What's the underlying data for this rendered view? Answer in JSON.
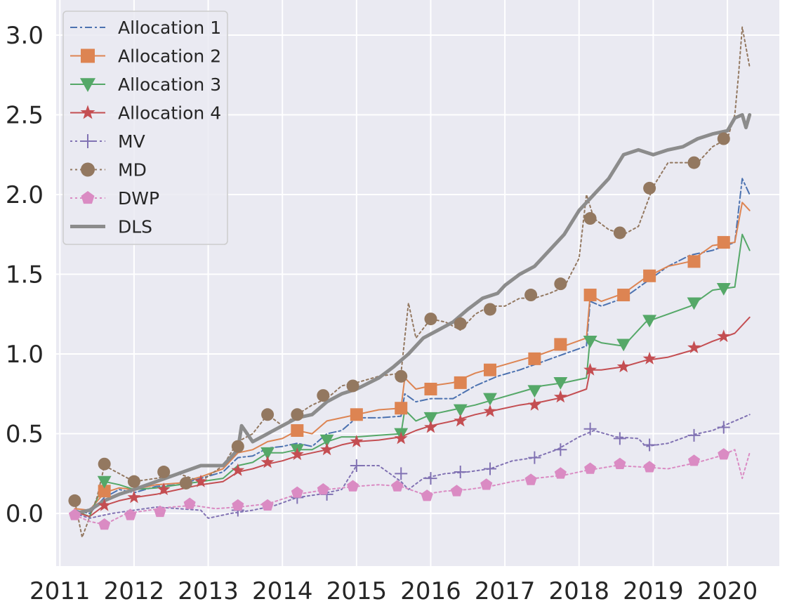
{
  "chart_data": {
    "type": "line",
    "title": "",
    "xlabel": "",
    "ylabel": "",
    "xlim": [
      2010.95,
      2020.7
    ],
    "ylim": [
      -0.33,
      3.22
    ],
    "x_ticks": [
      2011,
      2012,
      2013,
      2014,
      2015,
      2016,
      2017,
      2018,
      2019,
      2020
    ],
    "y_ticks": [
      0.0,
      0.5,
      1.0,
      1.5,
      2.0,
      2.5,
      3.0
    ],
    "y_tick_labels": [
      "0.0",
      "0.5",
      "1.0",
      "1.5",
      "2.0",
      "2.5",
      "3.0"
    ],
    "grid": true,
    "legend_position": "upper-left",
    "background": "#eaeaf2",
    "series": [
      {
        "name": "Allocation 1",
        "color": "#4c72b0",
        "dash": "dashdot",
        "marker": "none",
        "width": 2,
        "x": [
          2011.2,
          2011.4,
          2011.6,
          2011.8,
          2012.0,
          2012.3,
          2012.6,
          2012.9,
          2013.2,
          2013.4,
          2013.6,
          2013.8,
          2014.0,
          2014.2,
          2014.4,
          2014.6,
          2014.8,
          2015.0,
          2015.3,
          2015.6,
          2015.65,
          2015.8,
          2016.0,
          2016.3,
          2016.6,
          2016.9,
          2017.2,
          2017.5,
          2017.8,
          2018.1,
          2018.15,
          2018.3,
          2018.6,
          2018.9,
          2019.2,
          2019.5,
          2019.8,
          2020.1,
          2020.2,
          2020.3
        ],
        "y": [
          0.02,
          0.0,
          0.1,
          0.15,
          0.13,
          0.17,
          0.18,
          0.22,
          0.26,
          0.35,
          0.36,
          0.41,
          0.42,
          0.44,
          0.42,
          0.5,
          0.52,
          0.6,
          0.6,
          0.61,
          0.75,
          0.7,
          0.72,
          0.72,
          0.8,
          0.86,
          0.9,
          0.95,
          1.0,
          1.05,
          1.33,
          1.3,
          1.35,
          1.45,
          1.55,
          1.62,
          1.65,
          1.7,
          2.1,
          2.0
        ]
      },
      {
        "name": "Allocation 2",
        "color": "#dd8452",
        "dash": "solid",
        "marker": "square",
        "width": 2,
        "x": [
          2011.2,
          2011.4,
          2011.6,
          2011.8,
          2012.0,
          2012.3,
          2012.6,
          2012.9,
          2013.2,
          2013.4,
          2013.6,
          2013.8,
          2014.0,
          2014.2,
          2014.4,
          2014.6,
          2014.8,
          2015.0,
          2015.3,
          2015.6,
          2015.65,
          2015.8,
          2016.0,
          2016.3,
          2016.6,
          2016.9,
          2017.2,
          2017.5,
          2017.8,
          2018.1,
          2018.15,
          2018.3,
          2018.6,
          2018.9,
          2019.2,
          2019.5,
          2019.8,
          2020.1,
          2020.2,
          2020.3
        ],
        "y": [
          0.03,
          0.02,
          0.13,
          0.16,
          0.15,
          0.18,
          0.19,
          0.23,
          0.28,
          0.38,
          0.4,
          0.45,
          0.47,
          0.52,
          0.5,
          0.58,
          0.6,
          0.62,
          0.65,
          0.66,
          0.85,
          0.78,
          0.8,
          0.82,
          0.88,
          0.92,
          0.96,
          1.0,
          1.05,
          1.1,
          1.37,
          1.33,
          1.38,
          1.48,
          1.55,
          1.58,
          1.68,
          1.7,
          1.95,
          1.9
        ]
      },
      {
        "name": "Allocation 3",
        "color": "#55a868",
        "dash": "solid",
        "marker": "triangle-down",
        "width": 2,
        "x": [
          2011.2,
          2011.4,
          2011.6,
          2011.8,
          2012.0,
          2012.3,
          2012.6,
          2012.9,
          2013.2,
          2013.4,
          2013.6,
          2013.8,
          2014.0,
          2014.2,
          2014.4,
          2014.6,
          2014.8,
          2015.0,
          2015.3,
          2015.6,
          2015.65,
          2015.8,
          2016.0,
          2016.3,
          2016.6,
          2016.9,
          2017.2,
          2017.5,
          2017.8,
          2018.1,
          2018.15,
          2018.3,
          2018.6,
          2018.9,
          2019.2,
          2019.5,
          2019.8,
          2020.1,
          2020.2,
          2020.3
        ],
        "y": [
          0.02,
          -0.02,
          0.2,
          0.18,
          0.15,
          0.16,
          0.18,
          0.2,
          0.22,
          0.3,
          0.32,
          0.38,
          0.38,
          0.4,
          0.4,
          0.45,
          0.48,
          0.48,
          0.49,
          0.5,
          0.65,
          0.58,
          0.62,
          0.65,
          0.68,
          0.72,
          0.76,
          0.8,
          0.82,
          0.85,
          1.1,
          1.07,
          1.05,
          1.2,
          1.25,
          1.3,
          1.4,
          1.42,
          1.75,
          1.65
        ]
      },
      {
        "name": "Allocation 4",
        "color": "#c44e52",
        "dash": "solid",
        "marker": "star",
        "width": 2,
        "x": [
          2011.2,
          2011.4,
          2011.6,
          2011.8,
          2012.0,
          2012.3,
          2012.6,
          2012.9,
          2013.2,
          2013.4,
          2013.6,
          2013.8,
          2014.0,
          2014.2,
          2014.4,
          2014.6,
          2014.8,
          2015.0,
          2015.3,
          2015.6,
          2015.8,
          2016.0,
          2016.3,
          2016.6,
          2016.9,
          2017.2,
          2017.5,
          2017.8,
          2018.1,
          2018.15,
          2018.3,
          2018.6,
          2018.9,
          2019.2,
          2019.5,
          2019.8,
          2020.1,
          2020.3
        ],
        "y": [
          0.01,
          -0.02,
          0.05,
          0.08,
          0.1,
          0.12,
          0.15,
          0.18,
          0.2,
          0.26,
          0.28,
          0.31,
          0.33,
          0.36,
          0.38,
          0.4,
          0.43,
          0.45,
          0.46,
          0.48,
          0.52,
          0.55,
          0.58,
          0.62,
          0.65,
          0.68,
          0.7,
          0.73,
          0.78,
          0.9,
          0.9,
          0.92,
          0.96,
          0.98,
          1.02,
          1.08,
          1.13,
          1.23
        ]
      },
      {
        "name": "MV",
        "color": "#8172b3",
        "dash": "dotted",
        "marker": "plus",
        "width": 2,
        "x": [
          2011.2,
          2011.4,
          2011.7,
          2012.0,
          2012.3,
          2012.6,
          2012.9,
          2013.0,
          2013.3,
          2013.6,
          2013.9,
          2014.2,
          2014.5,
          2014.8,
          2015.0,
          2015.3,
          2015.6,
          2015.7,
          2015.9,
          2016.2,
          2016.5,
          2016.8,
          2017.1,
          2017.4,
          2017.7,
          2018.0,
          2018.2,
          2018.5,
          2018.8,
          2018.9,
          2019.2,
          2019.5,
          2019.8,
          2020.0,
          2020.2,
          2020.3
        ],
        "y": [
          0.0,
          -0.03,
          0.0,
          0.02,
          0.04,
          0.03,
          0.02,
          -0.03,
          0.0,
          0.02,
          0.05,
          0.1,
          0.12,
          0.15,
          0.3,
          0.3,
          0.2,
          0.15,
          0.22,
          0.25,
          0.26,
          0.28,
          0.33,
          0.35,
          0.4,
          0.48,
          0.52,
          0.48,
          0.47,
          0.42,
          0.44,
          0.49,
          0.52,
          0.56,
          0.6,
          0.62
        ]
      },
      {
        "name": "MD",
        "color": "#937860",
        "dash": "dotted",
        "marker": "circle",
        "width": 2,
        "x": [
          2011.2,
          2011.3,
          2011.5,
          2011.6,
          2011.8,
          2012.0,
          2012.3,
          2012.6,
          2012.9,
          2013.2,
          2013.4,
          2013.6,
          2013.8,
          2014.0,
          2014.2,
          2014.4,
          2014.6,
          2014.8,
          2015.0,
          2015.3,
          2015.6,
          2015.7,
          2015.8,
          2016.0,
          2016.2,
          2016.4,
          2016.6,
          2016.8,
          2017.0,
          2017.2,
          2017.4,
          2017.6,
          2017.8,
          2018.0,
          2018.1,
          2018.2,
          2018.4,
          2018.6,
          2018.8,
          2019.0,
          2019.2,
          2019.4,
          2019.6,
          2019.8,
          2020.0,
          2020.1,
          2020.15,
          2020.2,
          2020.3
        ],
        "y": [
          0.08,
          -0.15,
          0.1,
          0.3,
          0.25,
          0.2,
          0.22,
          0.25,
          0.2,
          0.3,
          0.45,
          0.5,
          0.62,
          0.55,
          0.62,
          0.68,
          0.72,
          0.8,
          0.82,
          0.86,
          0.88,
          1.32,
          1.1,
          1.22,
          1.2,
          1.15,
          1.25,
          1.3,
          1.3,
          1.35,
          1.35,
          1.38,
          1.42,
          1.6,
          2.0,
          1.85,
          1.78,
          1.75,
          1.8,
          2.05,
          2.2,
          2.2,
          2.2,
          2.3,
          2.35,
          2.5,
          2.75,
          3.05,
          2.8
        ]
      },
      {
        "name": "DWP",
        "color": "#da8bc3",
        "dash": "dotted",
        "marker": "pentagon",
        "width": 2,
        "x": [
          2011.2,
          2011.4,
          2011.6,
          2011.9,
          2012.2,
          2012.5,
          2012.8,
          2013.1,
          2013.4,
          2013.8,
          2014.2,
          2014.6,
          2015.0,
          2015.3,
          2015.6,
          2015.9,
          2016.2,
          2016.5,
          2016.8,
          2017.1,
          2017.4,
          2017.8,
          2018.1,
          2018.5,
          2018.9,
          2019.2,
          2019.6,
          2019.9,
          2020.1,
          2020.2,
          2020.3
        ],
        "y": [
          -0.01,
          -0.05,
          -0.07,
          0.0,
          0.02,
          0.04,
          0.05,
          0.03,
          0.04,
          0.06,
          0.12,
          0.15,
          0.17,
          0.18,
          0.17,
          0.12,
          0.14,
          0.15,
          0.17,
          0.2,
          0.22,
          0.24,
          0.27,
          0.3,
          0.29,
          0.28,
          0.32,
          0.36,
          0.4,
          0.22,
          0.38
        ]
      },
      {
        "name": "DLS",
        "color": "#8c8c8c",
        "dash": "solid",
        "marker": "none",
        "width": 5,
        "x": [
          2011.2,
          2011.4,
          2011.6,
          2011.8,
          2012.0,
          2012.3,
          2012.6,
          2012.9,
          2013.2,
          2013.4,
          2013.45,
          2013.6,
          2013.8,
          2014.0,
          2014.2,
          2014.4,
          2014.6,
          2014.8,
          2015.0,
          2015.3,
          2015.5,
          2015.7,
          2015.9,
          2016.1,
          2016.3,
          2016.5,
          2016.7,
          2016.9,
          2017.0,
          2017.2,
          2017.4,
          2017.6,
          2017.8,
          2018.0,
          2018.2,
          2018.4,
          2018.6,
          2018.8,
          2019.0,
          2019.2,
          2019.4,
          2019.6,
          2019.8,
          2020.0,
          2020.1,
          2020.2,
          2020.25,
          2020.3
        ],
        "y": [
          0.0,
          0.02,
          0.08,
          0.12,
          0.15,
          0.2,
          0.25,
          0.3,
          0.3,
          0.4,
          0.55,
          0.45,
          0.5,
          0.55,
          0.6,
          0.62,
          0.7,
          0.75,
          0.78,
          0.85,
          0.92,
          1.0,
          1.1,
          1.15,
          1.2,
          1.28,
          1.35,
          1.38,
          1.43,
          1.5,
          1.55,
          1.65,
          1.75,
          1.9,
          2.0,
          2.1,
          2.25,
          2.28,
          2.25,
          2.28,
          2.3,
          2.35,
          2.38,
          2.4,
          2.48,
          2.5,
          2.42,
          2.5
        ]
      }
    ],
    "markers": {
      "Allocation 2": [
        [
          2011.6,
          0.14
        ],
        [
          2014.2,
          0.52
        ],
        [
          2015.0,
          0.62
        ],
        [
          2015.6,
          0.66
        ],
        [
          2016.0,
          0.78
        ],
        [
          2016.4,
          0.82
        ],
        [
          2016.8,
          0.9
        ],
        [
          2017.4,
          0.97
        ],
        [
          2017.75,
          1.06
        ],
        [
          2018.15,
          1.37
        ],
        [
          2018.6,
          1.37
        ],
        [
          2018.95,
          1.49
        ],
        [
          2019.55,
          1.58
        ],
        [
          2019.95,
          1.7
        ]
      ],
      "Allocation 3": [
        [
          2011.6,
          0.2
        ],
        [
          2013.8,
          0.38
        ],
        [
          2014.2,
          0.4
        ],
        [
          2014.6,
          0.46
        ],
        [
          2015.6,
          0.5
        ],
        [
          2016.0,
          0.6
        ],
        [
          2016.4,
          0.65
        ],
        [
          2016.8,
          0.72
        ],
        [
          2017.4,
          0.77
        ],
        [
          2017.75,
          0.82
        ],
        [
          2018.15,
          1.08
        ],
        [
          2018.6,
          1.06
        ],
        [
          2018.95,
          1.21
        ],
        [
          2019.55,
          1.32
        ],
        [
          2019.95,
          1.41
        ]
      ],
      "Allocation 4": [
        [
          2011.6,
          0.05
        ],
        [
          2012.0,
          0.1
        ],
        [
          2012.4,
          0.15
        ],
        [
          2012.9,
          0.2
        ],
        [
          2013.4,
          0.27
        ],
        [
          2013.8,
          0.32
        ],
        [
          2014.2,
          0.37
        ],
        [
          2014.6,
          0.4
        ],
        [
          2015.0,
          0.45
        ],
        [
          2015.6,
          0.47
        ],
        [
          2016.0,
          0.54
        ],
        [
          2016.4,
          0.58
        ],
        [
          2016.8,
          0.64
        ],
        [
          2017.4,
          0.68
        ],
        [
          2017.75,
          0.73
        ],
        [
          2018.15,
          0.9
        ],
        [
          2018.6,
          0.92
        ],
        [
          2018.95,
          0.97
        ],
        [
          2019.55,
          1.04
        ],
        [
          2019.95,
          1.11
        ]
      ],
      "MD": [
        [
          2011.2,
          0.08
        ],
        [
          2011.6,
          0.31
        ],
        [
          2012.0,
          0.2
        ],
        [
          2012.4,
          0.26
        ],
        [
          2012.7,
          0.19
        ],
        [
          2013.4,
          0.42
        ],
        [
          2013.8,
          0.62
        ],
        [
          2014.2,
          0.62
        ],
        [
          2014.55,
          0.74
        ],
        [
          2014.95,
          0.8
        ],
        [
          2015.6,
          0.86
        ],
        [
          2016.0,
          1.22
        ],
        [
          2016.4,
          1.19
        ],
        [
          2016.8,
          1.28
        ],
        [
          2017.35,
          1.37
        ],
        [
          2017.75,
          1.44
        ],
        [
          2018.15,
          1.85
        ],
        [
          2018.55,
          1.76
        ],
        [
          2018.95,
          2.04
        ],
        [
          2019.55,
          2.2
        ],
        [
          2019.95,
          2.35
        ]
      ],
      "DWP": [
        [
          2011.2,
          -0.01
        ],
        [
          2011.6,
          -0.07
        ],
        [
          2011.95,
          -0.01
        ],
        [
          2012.35,
          0.01
        ],
        [
          2012.75,
          0.06
        ],
        [
          2013.4,
          0.05
        ],
        [
          2013.8,
          0.05
        ],
        [
          2014.2,
          0.13
        ],
        [
          2014.55,
          0.15
        ],
        [
          2014.95,
          0.17
        ],
        [
          2015.55,
          0.17
        ],
        [
          2015.95,
          0.11
        ],
        [
          2016.35,
          0.14
        ],
        [
          2016.75,
          0.18
        ],
        [
          2017.35,
          0.21
        ],
        [
          2017.75,
          0.25
        ],
        [
          2018.15,
          0.28
        ],
        [
          2018.55,
          0.31
        ],
        [
          2018.95,
          0.29
        ],
        [
          2019.55,
          0.33
        ],
        [
          2019.95,
          0.37
        ]
      ],
      "MV": [
        [
          2013.4,
          0.02
        ],
        [
          2014.2,
          0.1
        ],
        [
          2014.6,
          0.12
        ],
        [
          2015.0,
          0.3
        ],
        [
          2015.6,
          0.25
        ],
        [
          2016.0,
          0.22
        ],
        [
          2016.4,
          0.26
        ],
        [
          2016.8,
          0.28
        ],
        [
          2017.4,
          0.35
        ],
        [
          2017.75,
          0.4
        ],
        [
          2018.15,
          0.53
        ],
        [
          2018.55,
          0.47
        ],
        [
          2018.95,
          0.43
        ],
        [
          2019.55,
          0.49
        ],
        [
          2019.95,
          0.54
        ]
      ]
    }
  }
}
